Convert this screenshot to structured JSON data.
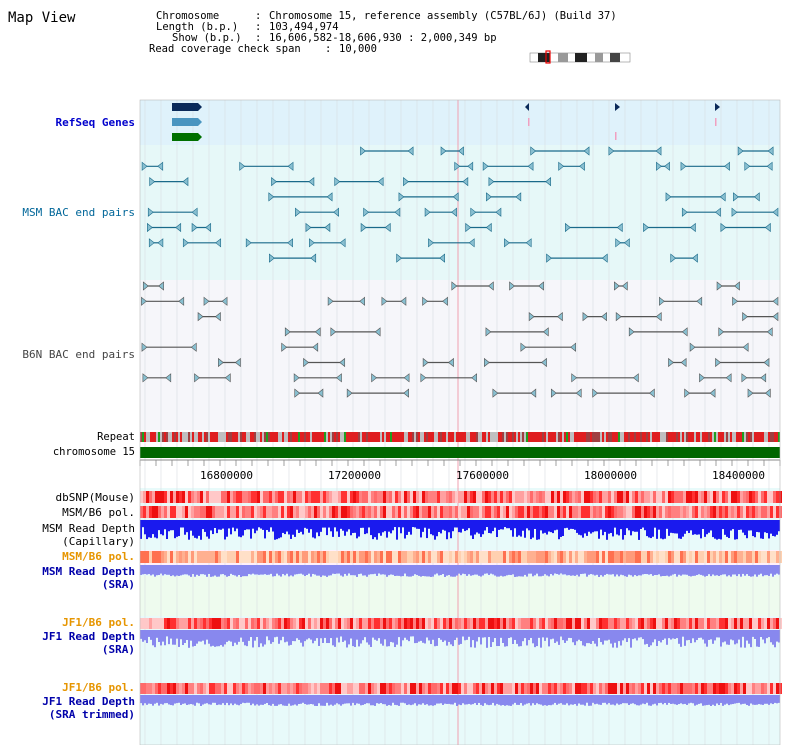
{
  "app": {
    "title": "Map View"
  },
  "info": {
    "chromosome_key": "Chromosome",
    "chromosome_val": "Chromosome 15, reference assembly (C57BL/6J) (Build 37)",
    "length_key": "Length (b.p.)",
    "length_val": "103,494,974",
    "show_key": "Show (b.p.)",
    "show_val": "16,606,582-18,606,930 : 2,000,349 bp",
    "coverage_key": "Read coverage check span",
    "coverage_val": "10,000"
  },
  "tracks": {
    "refseq": "RefSeq Genes",
    "msm_bac": "MSM BAC end pairs",
    "b6n_bac": "B6N BAC end pairs",
    "repeat": "Repeat",
    "chromosome": "chromosome 15",
    "dbsnp": "dbSNP(Mouse)",
    "msm_b6_pol_1": "MSM/B6 pol.",
    "msm_depth_cap_1": "MSM Read Depth",
    "msm_depth_cap_2": "(Capillary)",
    "msm_b6_pol_2": "MSM/B6 pol.",
    "msm_depth_sra_1": "MSM Read Depth",
    "msm_depth_sra_2": "(SRA)",
    "jf1_b6_pol_1": "JF1/B6 pol.",
    "jf1_depth_sra_1": "JF1 Read Depth",
    "jf1_depth_sra_2": "(SRA)",
    "jf1_b6_pol_2": "JF1/B6 pol.",
    "jf1_depth_trim_1": "JF1 Read Depth",
    "jf1_depth_trim_2": "(SRA trimmed)"
  },
  "axis": {
    "ticks": [
      "16800000",
      "17200000",
      "17600000",
      "18000000",
      "18400000"
    ]
  },
  "colors": {
    "refseq_bg": "#dff2fb",
    "msm_bg": "#e6f8f8",
    "b6n_bg": "#f6f6fa",
    "lower_bg": "#e8fafa",
    "msm_feature": "#1a6a8a",
    "b6n_feature": "#555555",
    "chromosome_bar": "#006600",
    "depth_capillary": "#1a1aee",
    "depth_sra": "#8888ee"
  }
}
